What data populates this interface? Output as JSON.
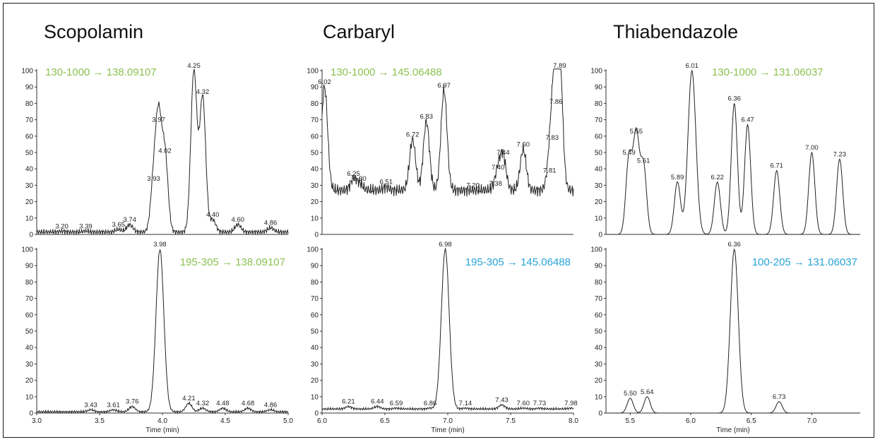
{
  "compounds": [
    {
      "name": "Scopolamin"
    },
    {
      "name": "Carbaryl"
    },
    {
      "name": "Thiabendazole"
    }
  ],
  "colors": {
    "green": "#8cc152",
    "blue": "#29a3d6",
    "trace": "#222222"
  },
  "chart_data": [
    {
      "type": "line",
      "compound": "Scopolamin",
      "transition": "130-1000 → 138.09107",
      "transition_color": "green",
      "xlim": [
        3.0,
        5.0
      ],
      "ylim": [
        0,
        100
      ],
      "xticks": [],
      "xlabel": "",
      "yticks": [
        0,
        10,
        20,
        30,
        40,
        50,
        60,
        70,
        80,
        90,
        100
      ],
      "baseline": 1.5,
      "noise": 1.8,
      "peaks": [
        {
          "x": 3.2,
          "y": 2
        },
        {
          "x": 3.39,
          "y": 2
        },
        {
          "x": 3.65,
          "y": 3
        },
        {
          "x": 3.74,
          "y": 6
        },
        {
          "x": 3.93,
          "y": 31
        },
        {
          "x": 3.97,
          "y": 67
        },
        {
          "x": 4.02,
          "y": 48
        },
        {
          "x": 4.25,
          "y": 100
        },
        {
          "x": 4.32,
          "y": 84
        },
        {
          "x": 4.4,
          "y": 9
        },
        {
          "x": 4.6,
          "y": 6
        },
        {
          "x": 4.86,
          "y": 4
        }
      ]
    },
    {
      "type": "line",
      "compound": "Scopolamin",
      "transition": "195-305 → 138.09107",
      "transition_color": "green",
      "xlim": [
        3.0,
        5.0
      ],
      "ylim": [
        0,
        100
      ],
      "xticks": [
        3.0,
        3.5,
        4.0,
        4.5,
        5.0
      ],
      "xlabel": "Time (min)",
      "yticks": [
        0,
        10,
        20,
        30,
        40,
        50,
        60,
        70,
        80,
        90,
        100
      ],
      "baseline": 0.8,
      "noise": 0.8,
      "peaks": [
        {
          "x": 3.43,
          "y": 2
        },
        {
          "x": 3.61,
          "y": 2
        },
        {
          "x": 3.76,
          "y": 4
        },
        {
          "x": 3.98,
          "y": 100
        },
        {
          "x": 4.21,
          "y": 6
        },
        {
          "x": 4.32,
          "y": 3
        },
        {
          "x": 4.48,
          "y": 3
        },
        {
          "x": 4.68,
          "y": 3
        },
        {
          "x": 4.86,
          "y": 2
        }
      ]
    },
    {
      "type": "line",
      "compound": "Carbaryl",
      "transition": "130-1000 → 145.06488",
      "transition_color": "green",
      "xlim": [
        6.0,
        8.0
      ],
      "ylim": [
        0,
        100
      ],
      "xticks": [],
      "xlabel": "",
      "yticks": [
        0,
        10,
        20,
        30,
        40,
        50,
        60,
        70,
        80,
        90,
        100
      ],
      "baseline": 27,
      "noise": 4,
      "peaks": [
        {
          "x": 6.02,
          "y": 90
        },
        {
          "x": 6.25,
          "y": 34
        },
        {
          "x": 6.3,
          "y": 31
        },
        {
          "x": 6.51,
          "y": 29
        },
        {
          "x": 6.72,
          "y": 58
        },
        {
          "x": 6.83,
          "y": 69
        },
        {
          "x": 6.97,
          "y": 88
        },
        {
          "x": 7.2,
          "y": 27
        },
        {
          "x": 7.38,
          "y": 28
        },
        {
          "x": 7.4,
          "y": 38
        },
        {
          "x": 7.44,
          "y": 47
        },
        {
          "x": 7.6,
          "y": 52
        },
        {
          "x": 7.81,
          "y": 36
        },
        {
          "x": 7.83,
          "y": 56
        },
        {
          "x": 7.86,
          "y": 78
        },
        {
          "x": 7.89,
          "y": 100
        }
      ]
    },
    {
      "type": "line",
      "compound": "Carbaryl",
      "transition": "195-305 → 145.06488",
      "transition_color": "blue",
      "xlim": [
        6.0,
        8.0
      ],
      "ylim": [
        0,
        100
      ],
      "xticks": [
        6.0,
        6.5,
        7.0,
        7.5,
        8.0
      ],
      "xlabel": "Time (min)",
      "yticks": [
        0,
        10,
        20,
        30,
        40,
        50,
        60,
        70,
        80,
        90,
        100
      ],
      "baseline": 2.5,
      "noise": 0.8,
      "peaks": [
        {
          "x": 6.21,
          "y": 4
        },
        {
          "x": 6.44,
          "y": 4
        },
        {
          "x": 6.59,
          "y": 3
        },
        {
          "x": 6.86,
          "y": 3
        },
        {
          "x": 6.98,
          "y": 100
        },
        {
          "x": 7.14,
          "y": 3
        },
        {
          "x": 7.43,
          "y": 5
        },
        {
          "x": 7.6,
          "y": 3
        },
        {
          "x": 7.73,
          "y": 3
        },
        {
          "x": 7.98,
          "y": 3
        }
      ]
    },
    {
      "type": "line",
      "compound": "Thiabendazole",
      "transition": "130-1000 → 131.06037",
      "transition_color": "green",
      "xlim": [
        5.3,
        7.4
      ],
      "ylim": [
        0,
        100
      ],
      "xticks": [],
      "xlabel": "",
      "yticks": [
        0,
        10,
        20,
        30,
        40,
        50,
        60,
        70,
        80,
        90,
        100
      ],
      "baseline": 0,
      "noise": 0,
      "peaks": [
        {
          "x": 5.49,
          "y": 47
        },
        {
          "x": 5.55,
          "y": 60
        },
        {
          "x": 5.61,
          "y": 42
        },
        {
          "x": 5.89,
          "y": 32
        },
        {
          "x": 6.01,
          "y": 100
        },
        {
          "x": 6.22,
          "y": 32
        },
        {
          "x": 6.36,
          "y": 80
        },
        {
          "x": 6.47,
          "y": 67
        },
        {
          "x": 6.71,
          "y": 39
        },
        {
          "x": 7.0,
          "y": 50
        },
        {
          "x": 7.23,
          "y": 46
        }
      ]
    },
    {
      "type": "line",
      "compound": "Thiabendazole",
      "transition": "100-205 → 131.06037",
      "transition_color": "blue",
      "xlim": [
        5.3,
        7.4
      ],
      "ylim": [
        0,
        100
      ],
      "xticks": [
        5.5,
        6.0,
        6.5,
        7.0
      ],
      "xlabel": "Time (min)",
      "yticks": [
        0,
        10,
        20,
        30,
        40,
        50,
        60,
        70,
        80,
        90,
        100
      ],
      "baseline": 0,
      "noise": 0,
      "peaks": [
        {
          "x": 5.5,
          "y": 9
        },
        {
          "x": 5.64,
          "y": 10
        },
        {
          "x": 6.36,
          "y": 100
        },
        {
          "x": 6.73,
          "y": 7
        }
      ]
    }
  ]
}
